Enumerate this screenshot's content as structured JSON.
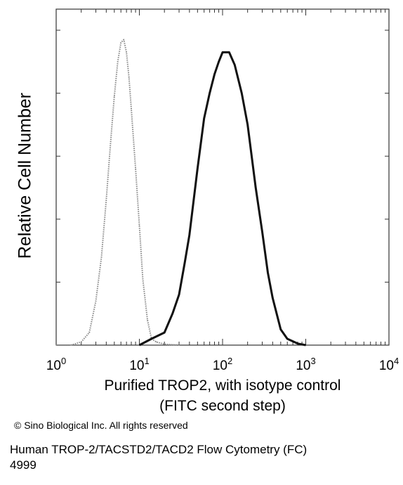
{
  "chart_data": {
    "type": "line",
    "ylabel": "Relative Cell Number",
    "xlabel_line1": "Purified TROP2, with isotype control",
    "xlabel_line2": "(FITC second step)",
    "xscale": "log",
    "xlim": [
      1,
      10000
    ],
    "ylim": [
      0,
      100
    ],
    "x_tick_labels": [
      {
        "base": "10",
        "exp": "0"
      },
      {
        "base": "10",
        "exp": "1"
      },
      {
        "base": "10",
        "exp": "2"
      },
      {
        "base": "10",
        "exp": "3"
      },
      {
        "base": "10",
        "exp": "4"
      }
    ],
    "grid": false,
    "series": [
      {
        "style": "dotted-gray",
        "x": [
          1,
          1.5,
          2.0,
          2.5,
          3.0,
          3.5,
          4.0,
          4.5,
          5.0,
          5.5,
          6.0,
          6.5,
          7.0,
          7.5,
          8.0,
          9.0,
          10.0,
          11.0,
          12.5,
          14.0,
          16.0,
          20.0,
          30.0
        ],
        "y": [
          0,
          0,
          1,
          4,
          14,
          28,
          46,
          64,
          79,
          90,
          96,
          97,
          93,
          85,
          75,
          56,
          38,
          21,
          8,
          2,
          1,
          0.3,
          0
        ]
      },
      {
        "style": "solid-dark",
        "x": [
          10,
          14,
          20,
          25,
          30,
          35,
          40,
          50,
          60,
          70,
          80,
          90,
          100,
          120,
          140,
          170,
          200,
          250,
          300,
          350,
          400,
          500,
          600,
          800,
          1000
        ],
        "y": [
          0,
          2,
          4,
          10,
          16,
          26,
          35,
          56,
          72,
          80,
          86,
          90,
          93,
          93,
          89,
          80,
          70,
          50,
          36,
          23,
          15,
          5,
          2,
          0.5,
          0
        ]
      }
    ]
  },
  "footer": {
    "copyright": "© Sino Biological Inc. All rights reserved",
    "caption_line1": "Human TROP-2/TACSTD2/TACD2 Flow Cytometry (FC)",
    "caption_line2": "4999"
  }
}
